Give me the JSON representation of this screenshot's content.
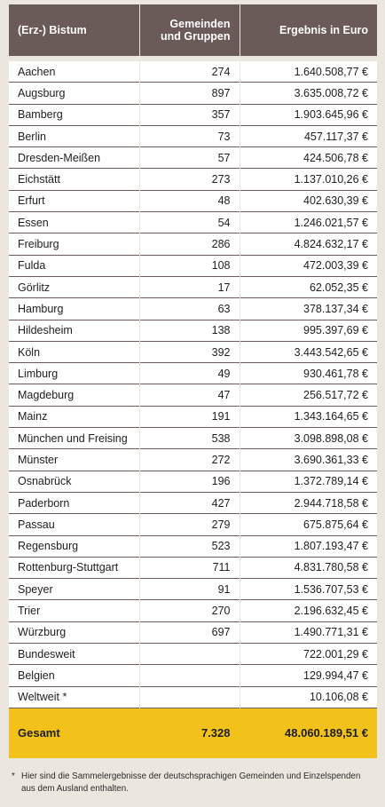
{
  "header": {
    "bistum": "(Erz-) Bistum",
    "gemeinden": "Gemeinden und Gruppen",
    "ergebnis": "Ergebnis in Euro"
  },
  "rows": [
    {
      "name": "Aachen",
      "count": "274",
      "amount": "1.640.508,77 €"
    },
    {
      "name": "Augsburg",
      "count": "897",
      "amount": "3.635.008,72 €"
    },
    {
      "name": "Bamberg",
      "count": "357",
      "amount": "1.903.645,96 €"
    },
    {
      "name": "Berlin",
      "count": "73",
      "amount": "457.117,37 €"
    },
    {
      "name": "Dresden-Meißen",
      "count": "57",
      "amount": "424.506,78 €"
    },
    {
      "name": "Eichstätt",
      "count": "273",
      "amount": "1.137.010,26 €"
    },
    {
      "name": "Erfurt",
      "count": "48",
      "amount": "402.630,39 €"
    },
    {
      "name": "Essen",
      "count": "54",
      "amount": "1.246.021,57 €"
    },
    {
      "name": "Freiburg",
      "count": "286",
      "amount": "4.824.632,17 €"
    },
    {
      "name": "Fulda",
      "count": "108",
      "amount": "472.003,39 €"
    },
    {
      "name": "Görlitz",
      "count": "17",
      "amount": "62.052,35 €"
    },
    {
      "name": "Hamburg",
      "count": "63",
      "amount": "378.137,34 €"
    },
    {
      "name": "Hildesheim",
      "count": "138",
      "amount": "995.397,69 €"
    },
    {
      "name": "Köln",
      "count": "392",
      "amount": "3.443.542,65 €"
    },
    {
      "name": "Limburg",
      "count": "49",
      "amount": "930.461,78 €"
    },
    {
      "name": "Magdeburg",
      "count": "47",
      "amount": "256.517,72 €"
    },
    {
      "name": "Mainz",
      "count": "191",
      "amount": "1.343.164,65 €"
    },
    {
      "name": "München und Freising",
      "count": "538",
      "amount": "3.098.898,08 €"
    },
    {
      "name": "Münster",
      "count": "272",
      "amount": "3.690.361,33 €"
    },
    {
      "name": "Osnabrück",
      "count": "196",
      "amount": "1.372.789,14 €"
    },
    {
      "name": "Paderborn",
      "count": "427",
      "amount": "2.944.718,58 €"
    },
    {
      "name": "Passau",
      "count": "279",
      "amount": "675.875,64 €"
    },
    {
      "name": "Regensburg",
      "count": "523",
      "amount": "1.807.193,47 €"
    },
    {
      "name": "Rottenburg-Stuttgart",
      "count": "711",
      "amount": "4.831.780,58 €"
    },
    {
      "name": "Speyer",
      "count": "91",
      "amount": "1.536.707,53 €"
    },
    {
      "name": "Trier",
      "count": "270",
      "amount": "2.196.632,45 €"
    },
    {
      "name": "Würzburg",
      "count": "697",
      "amount": "1.490.771,31 €"
    },
    {
      "name": "Bundesweit",
      "count": "",
      "amount": "722.001,29 €"
    },
    {
      "name": "Belgien",
      "count": "",
      "amount": "129.994,47 €"
    },
    {
      "name": "Weltweit *",
      "count": "",
      "amount": "10.106,08 €"
    }
  ],
  "total": {
    "label": "Gesamt",
    "count": "7.328",
    "amount": "48.060.189,51 €"
  },
  "footnote": {
    "mark": "*",
    "text": "Hier sind die Sammelergebnisse der deutschsprachigen Gemeinden und Einzelspenden aus dem Ausland enthalten."
  },
  "colors": {
    "header": "#6a5a58",
    "total": "#f2c21a",
    "background": "#ebe7df"
  }
}
